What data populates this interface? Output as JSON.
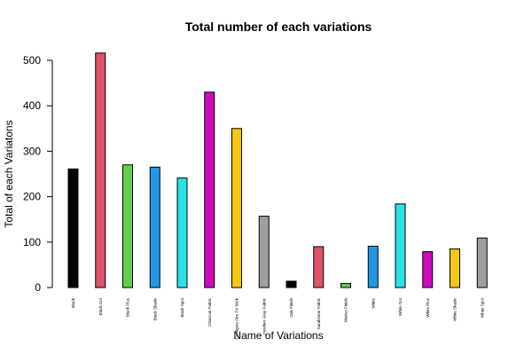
{
  "chart_data": {
    "type": "bar",
    "title": "Total number of each variations",
    "xlabel": "Name of Variations",
    "ylabel": "Total of each Variatons",
    "ylim": [
      0,
      520
    ],
    "yticks": [
      0,
      100,
      200,
      300,
      400,
      500
    ],
    "grid": false,
    "legend": "none",
    "categories": [
      "Black",
      "Black Dot",
      "Black Plus",
      "Black Shade",
      "Black Spot",
      "Charcoal Fabric",
      "Configure Fire TV Stick",
      "Heather Gray Fabric",
      "Oak Finish",
      "Sandstone Fabric",
      "Walnut Finish",
      "White",
      "White Dot",
      "White Plus",
      "White Shade",
      "White Spot"
    ],
    "values": [
      261,
      516,
      270,
      265,
      241,
      430,
      350,
      157,
      14,
      90,
      9,
      91,
      184,
      79,
      85,
      109
    ],
    "colors": [
      "#000000",
      "#df536b",
      "#61d04f",
      "#2297e6",
      "#28e2e5",
      "#cd0bbc",
      "#f5c710",
      "#9e9e9e",
      "#000000",
      "#df536b",
      "#61d04f",
      "#2297e6",
      "#28e2e5",
      "#cd0bbc",
      "#f5c710",
      "#9e9e9e"
    ]
  }
}
